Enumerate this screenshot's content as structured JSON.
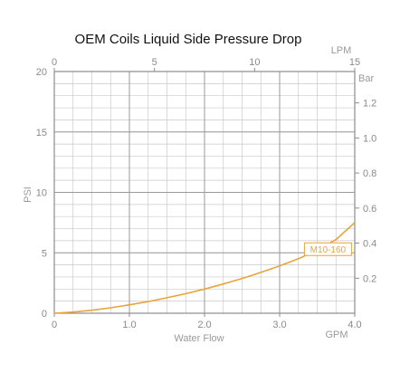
{
  "chart_data": {
    "type": "line",
    "title": "OEM Coils Liquid Side Pressure Drop",
    "xlabel": "Water Flow",
    "xunit": "GPM",
    "ylabel": "PSI",
    "top_axis": {
      "unit": "LPM",
      "range": [
        0,
        15
      ],
      "ticks": [
        "0",
        "5",
        "10",
        "15"
      ]
    },
    "right_axis": {
      "unit": "Bar",
      "ticks": [
        "0.2",
        "0.4",
        "0.6",
        "0.8",
        "1.0",
        "1.2"
      ]
    },
    "xlim": [
      0,
      4
    ],
    "ylim": [
      0,
      20
    ],
    "x_ticks": [
      "0",
      "1.0",
      "2.0",
      "3.0",
      "4.0"
    ],
    "y_ticks": [
      "0",
      "5",
      "10",
      "15",
      "20"
    ],
    "grid": true,
    "series": [
      {
        "name": "M10-160",
        "color": "#E8A33A",
        "x": [
          0,
          0.25,
          0.5,
          0.75,
          1.0,
          1.25,
          1.5,
          1.75,
          2.0,
          2.25,
          2.5,
          2.75,
          3.0,
          3.25,
          3.5,
          3.75,
          4.0
        ],
        "y": [
          0,
          0.1,
          0.25,
          0.45,
          0.7,
          0.97,
          1.28,
          1.62,
          2.0,
          2.42,
          2.88,
          3.38,
          3.92,
          4.52,
          5.2,
          6.1,
          7.5
        ]
      }
    ]
  }
}
